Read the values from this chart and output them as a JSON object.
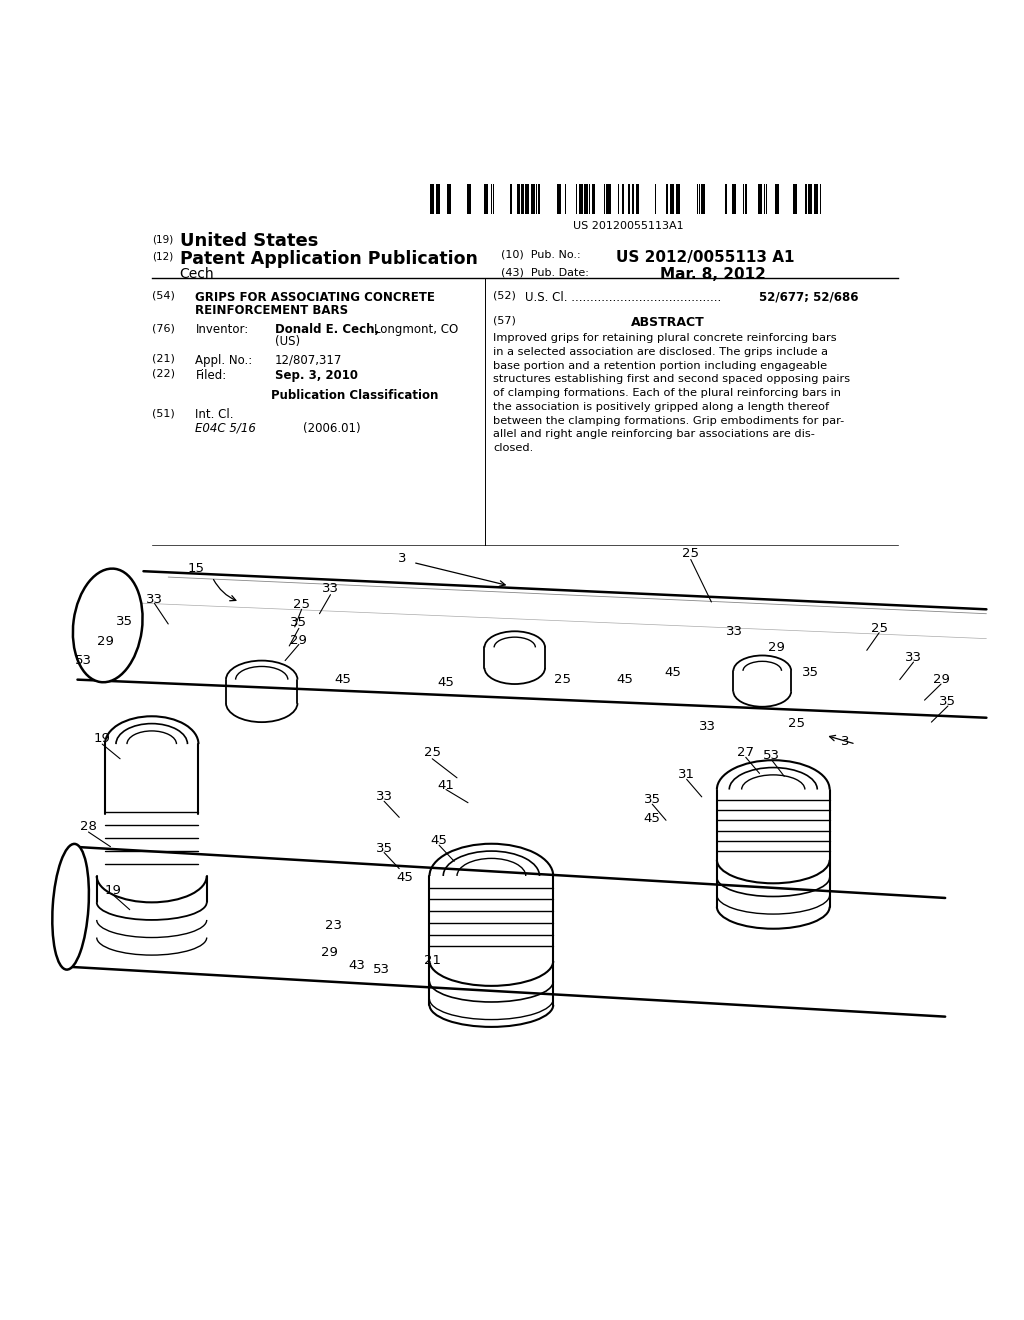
{
  "bg_color": "#ffffff",
  "page_width": 10.24,
  "page_height": 13.2,
  "barcode_text": "US 20120055113A1",
  "title_19": "(19)",
  "title_us": "United States",
  "title_12": "(12)",
  "title_pat": "Patent Application Publication",
  "pub_no_label": "(10)  Pub. No.:",
  "pub_no": "US 2012/0055113 A1",
  "inventor_last": "Cech",
  "pub_date_label": "(43)  Pub. Date:",
  "pub_date": "Mar. 8, 2012",
  "field54_label": "(54)",
  "field52_label": "(52)",
  "field76_label": "(76)",
  "field21_label": "(21)",
  "field22_label": "(22)",
  "field51_label": "(51)",
  "field57_label": "(57)",
  "abstract_title": "ABSTRACT",
  "abstract_lines": [
    "Improved grips for retaining plural concrete reinforcing bars",
    "in a selected association are disclosed. The grips include a",
    "base portion and a retention portion including engageable",
    "structures establishing first and second spaced opposing pairs",
    "of clamping formations. Each of the plural reinforcing bars in",
    "the association is positively gripped along a length thereof",
    "between the clamping formations. Grip embodiments for par-",
    "allel and right angle reinforcing bar associations are dis-",
    "closed."
  ],
  "drawing_nums": [
    [
      270,
      475,
      "3"
    ],
    [
      480,
      478,
      "25"
    ],
    [
      120,
      468,
      "15"
    ],
    [
      218,
      454,
      "33"
    ],
    [
      197,
      443,
      "25"
    ],
    [
      195,
      431,
      "35"
    ],
    [
      195,
      419,
      "29"
    ],
    [
      90,
      447,
      "33"
    ],
    [
      68,
      432,
      "35"
    ],
    [
      54,
      418,
      "29"
    ],
    [
      38,
      405,
      "53"
    ],
    [
      52,
      352,
      "19"
    ],
    [
      42,
      292,
      "28"
    ],
    [
      60,
      248,
      "19"
    ],
    [
      220,
      224,
      "23"
    ],
    [
      217,
      206,
      "29"
    ],
    [
      237,
      197,
      "43"
    ],
    [
      255,
      194,
      "53"
    ],
    [
      292,
      200,
      "21"
    ],
    [
      292,
      342,
      "25"
    ],
    [
      302,
      320,
      "41"
    ],
    [
      257,
      312,
      "33"
    ],
    [
      297,
      282,
      "45"
    ],
    [
      257,
      277,
      "35"
    ],
    [
      272,
      257,
      "45"
    ],
    [
      227,
      392,
      "45"
    ],
    [
      302,
      390,
      "45"
    ],
    [
      387,
      392,
      "25"
    ],
    [
      432,
      392,
      "45"
    ],
    [
      467,
      397,
      "45"
    ],
    [
      512,
      425,
      "33"
    ],
    [
      542,
      414,
      "29"
    ],
    [
      567,
      397,
      "35"
    ],
    [
      557,
      362,
      "25"
    ],
    [
      492,
      360,
      "33"
    ],
    [
      520,
      342,
      "27"
    ],
    [
      539,
      340,
      "53"
    ],
    [
      592,
      350,
      "3"
    ],
    [
      477,
      327,
      "31"
    ],
    [
      452,
      310,
      "35"
    ],
    [
      452,
      297,
      "45"
    ],
    [
      617,
      427,
      "25"
    ],
    [
      642,
      407,
      "33"
    ],
    [
      662,
      392,
      "29"
    ],
    [
      667,
      377,
      "35"
    ]
  ]
}
